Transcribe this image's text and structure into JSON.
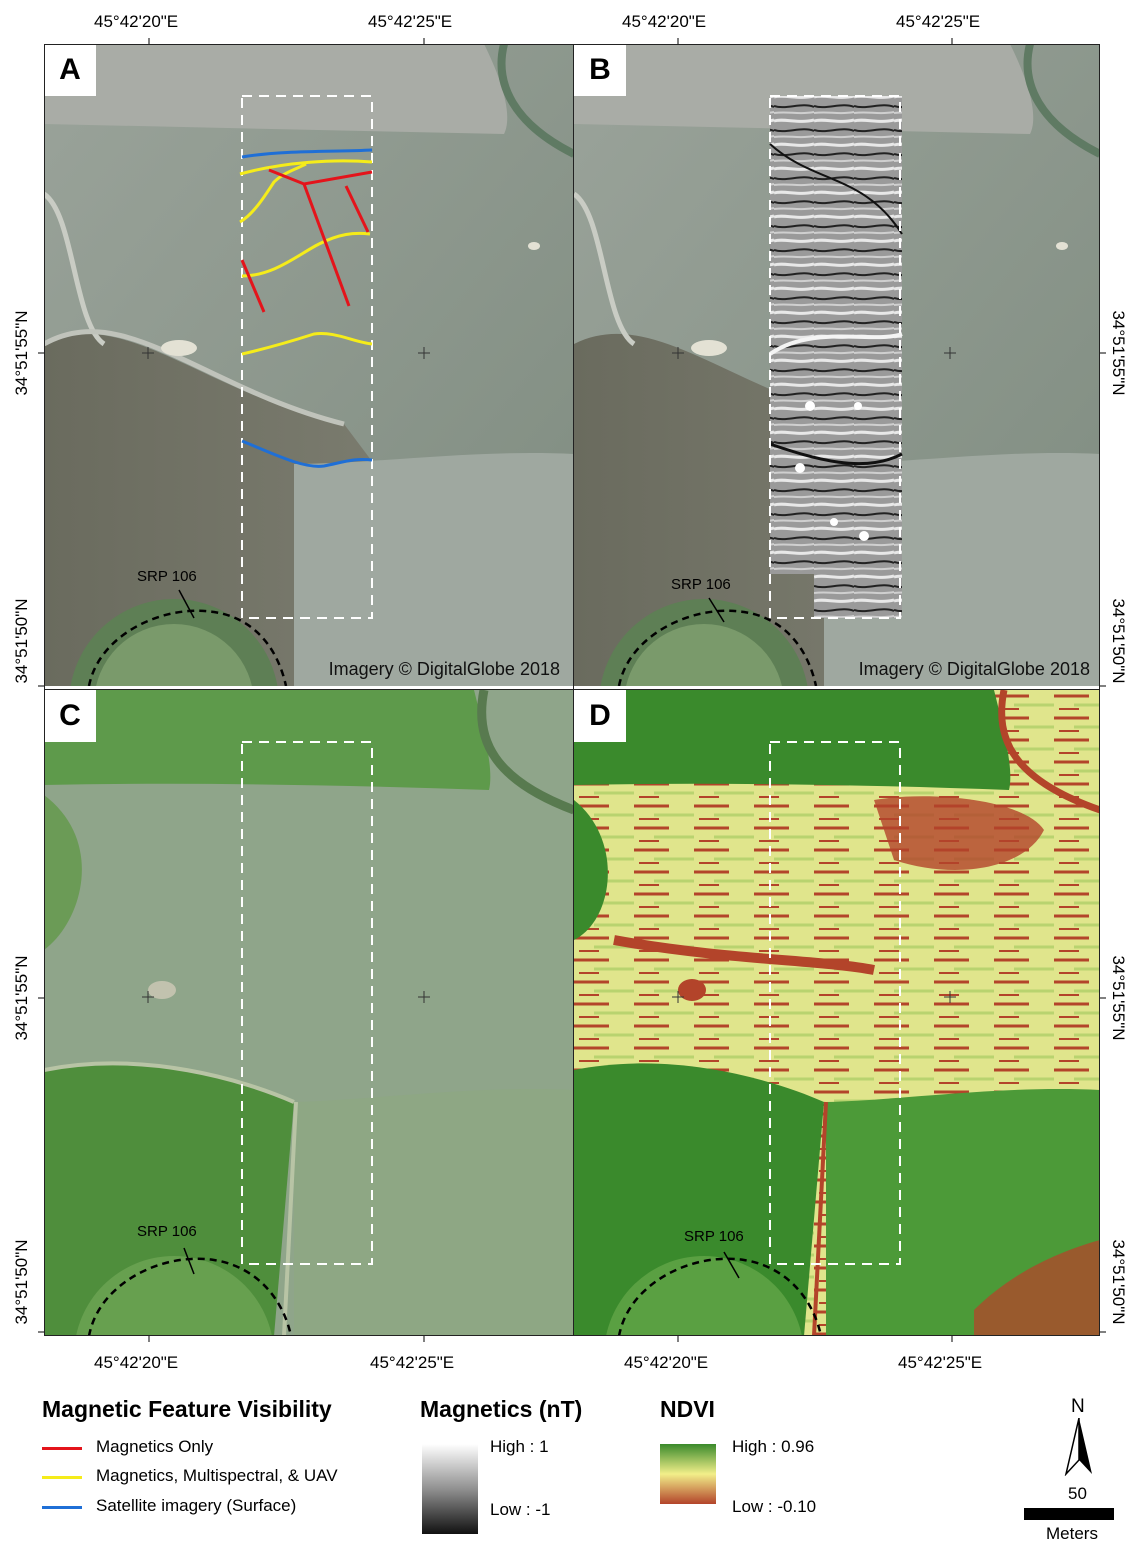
{
  "panels": [
    {
      "id": "A",
      "credit": "Imagery © DigitalGlobe 2018",
      "site_label": "SRP 106"
    },
    {
      "id": "B",
      "credit": "Imagery © DigitalGlobe 2018",
      "site_label": "SRP 106"
    },
    {
      "id": "C",
      "credit": "",
      "site_label": "SRP 106"
    },
    {
      "id": "D",
      "credit": "",
      "site_label": "SRP 106"
    }
  ],
  "coords": {
    "lon_1": "45°42'20\"E",
    "lon_2": "45°42'25\"E",
    "lat_1": "34°51'55\"N",
    "lat_2": "34°51'50\"N"
  },
  "legend": {
    "visibility_title": "Magnetic Feature Visibility",
    "items": [
      {
        "label": "Magnetics Only",
        "color": "#e4141b"
      },
      {
        "label": "Magnetics, Multispectral, & UAV",
        "color": "#f5ec1a"
      },
      {
        "label": "Satellite imagery (Surface)",
        "color": "#1f6fd6"
      }
    ],
    "magnetics_title": "Magnetics (nT)",
    "magnetics_high": "High : 1",
    "magnetics_low": "Low : -1",
    "ndvi_title": "NDVI",
    "ndvi_high": "High : 0.96",
    "ndvi_low": "Low : -0.10"
  },
  "north": {
    "label": "N"
  },
  "scalebar": {
    "value": "50",
    "unit": "Meters"
  },
  "colors": {
    "ndvi_high": "#3a8a2c",
    "ndvi_mid": "#f2ef8a",
    "ndvi_low": "#b3442a",
    "survey_box": "#ffffff",
    "site_outline": "#000000"
  }
}
